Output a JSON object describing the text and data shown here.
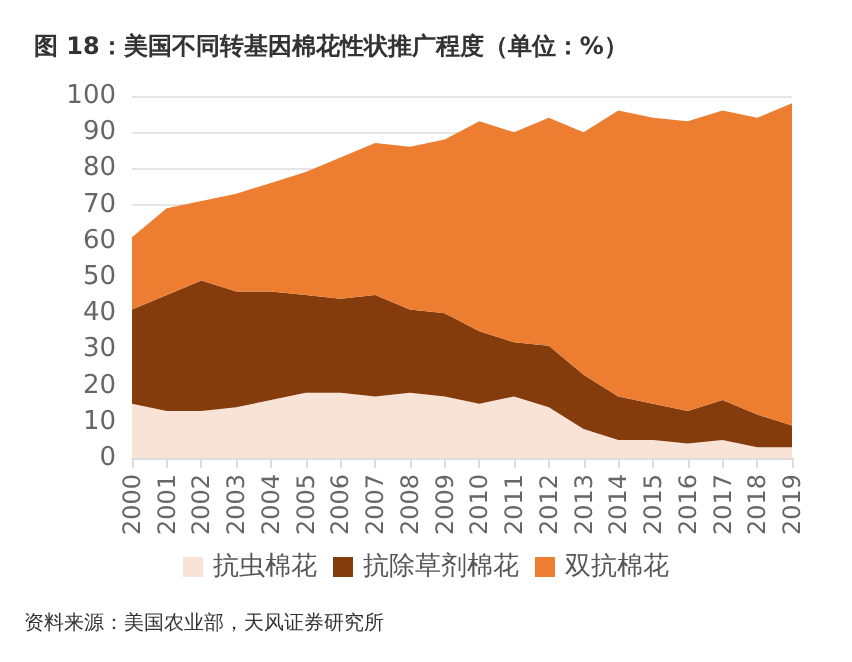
{
  "chart_data": {
    "type": "area",
    "stacked": true,
    "title": "图 18：美国不同转基因棉花性状推广程度（单位：%）",
    "annotations": [
      "资料来源：美国农业部，天风证券研究所"
    ],
    "categories": [
      "2000",
      "2001",
      "2002",
      "2003",
      "2004",
      "2005",
      "2006",
      "2007",
      "2008",
      "2009",
      "2010",
      "2011",
      "2012",
      "2013",
      "2014",
      "2015",
      "2016",
      "2017",
      "2018",
      "2019"
    ],
    "series": [
      {
        "name": "抗虫棉花",
        "color": "#f9e3d6",
        "values": [
          15,
          13,
          13,
          14,
          16,
          18,
          18,
          17,
          18,
          17,
          15,
          17,
          14,
          8,
          5,
          5,
          4,
          5,
          3,
          3
        ]
      },
      {
        "name": "抗除草剂棉花",
        "color": "#843c0c",
        "values": [
          26,
          32,
          36,
          32,
          30,
          27,
          26,
          28,
          23,
          23,
          20,
          15,
          17,
          15,
          12,
          10,
          9,
          11,
          9,
          6
        ]
      },
      {
        "name": "双抗棉花",
        "color": "#ed7d31",
        "values": [
          20,
          24,
          22,
          27,
          30,
          34,
          39,
          42,
          45,
          48,
          58,
          58,
          63,
          67,
          79,
          79,
          80,
          80,
          82,
          89
        ]
      }
    ],
    "ylim": [
      0,
      100
    ],
    "yticks": [
      0,
      10,
      20,
      30,
      40,
      50,
      60,
      70,
      80,
      90,
      100
    ],
    "grid": "y",
    "legend": "bottom"
  }
}
